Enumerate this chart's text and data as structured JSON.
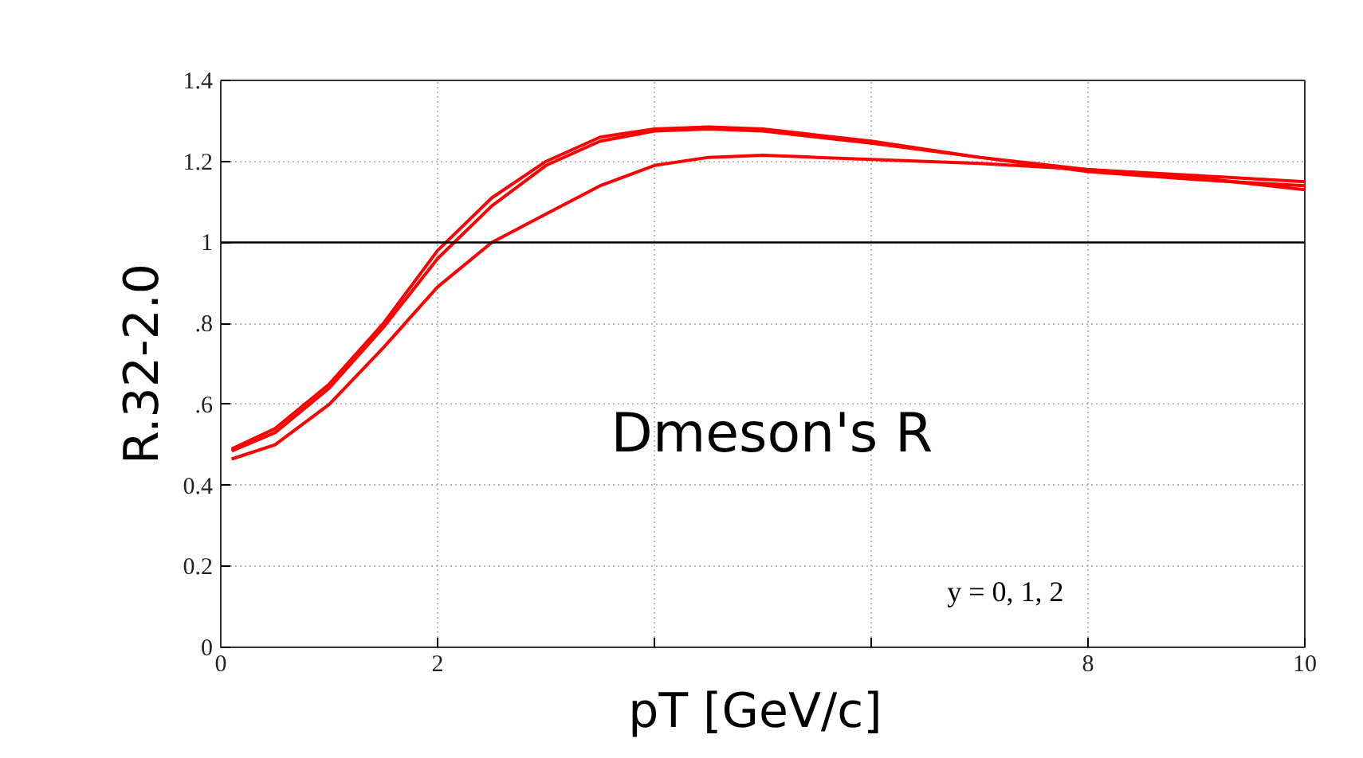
{
  "chart_data": {
    "type": "line",
    "xlabel": "pT  [GeV/c]",
    "ylabel": "R.32-2.0",
    "annotations": [
      "Dmeson's R",
      "y = 0, 1, 2"
    ],
    "xlim": [
      0,
      10
    ],
    "ylim": [
      0,
      1.4
    ],
    "xticks": [
      0,
      2,
      {
        "value": 4,
        "label": null
      },
      {
        "value": 6,
        "label": null
      },
      8,
      10
    ],
    "yticks": [
      0,
      0.2,
      0.4,
      {
        "value": 0.6,
        "label": ".6"
      },
      {
        "value": 0.8,
        "label": ".8"
      },
      1,
      1.2,
      1.4
    ],
    "grid": true,
    "line_style": "solid",
    "marker": "none",
    "ref_lines": [
      {
        "axis": "y",
        "value": 1,
        "label": null,
        "color": "#000000"
      }
    ],
    "x": [
      0.1,
      0.5,
      1,
      1.5,
      2,
      2.5,
      3,
      3.5,
      4,
      4.5,
      5,
      5.5,
      6,
      7,
      8,
      9,
      10
    ],
    "series": [
      {
        "color": "#ff0000",
        "values": [
          0.49,
          0.54,
          0.65,
          0.8,
          0.98,
          1.11,
          1.2,
          1.26,
          1.28,
          1.285,
          1.28,
          1.265,
          1.25,
          1.21,
          1.18,
          1.165,
          1.15
        ]
      },
      {
        "color": "#ff0000",
        "values": [
          0.485,
          0.53,
          0.64,
          0.79,
          0.96,
          1.09,
          1.19,
          1.25,
          1.275,
          1.28,
          1.275,
          1.26,
          1.245,
          1.21,
          1.175,
          1.155,
          1.14
        ]
      },
      {
        "color": "#ff0000",
        "values": [
          0.465,
          0.5,
          0.6,
          0.74,
          0.89,
          1.0,
          1.07,
          1.14,
          1.19,
          1.21,
          1.215,
          1.21,
          1.205,
          1.195,
          1.18,
          1.16,
          1.13
        ]
      }
    ]
  }
}
